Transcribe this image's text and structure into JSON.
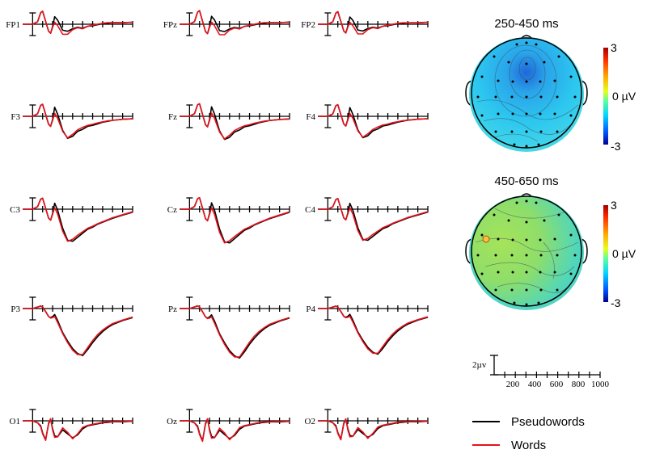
{
  "figure": {
    "electrodes": [
      [
        "FP1",
        "FPz",
        "FP2"
      ],
      [
        "F3",
        "Fz",
        "F4"
      ],
      [
        "C3",
        "Cz",
        "C4"
      ],
      [
        "P3",
        "Pz",
        "P4"
      ],
      [
        "O1",
        "Oz",
        "O2"
      ]
    ],
    "maps": [
      {
        "title": "250-450 ms",
        "cb_max": "3",
        "cb_mid": "0 µV",
        "cb_min": "-3"
      },
      {
        "title": "450-650 ms",
        "cb_max": "3",
        "cb_mid": "0 µV",
        "cb_min": "-3"
      }
    ],
    "scale": {
      "amplitude_label": "2µv",
      "ticks": [
        "200",
        "400",
        "600",
        "800",
        "1000"
      ]
    },
    "legend": [
      {
        "label": "Pseudowords",
        "color": "#000000"
      },
      {
        "label": "Words",
        "color": "#e8121b"
      }
    ]
  },
  "chart_data": {
    "type": "line",
    "x_unit": "ms",
    "xlim": [
      -100,
      1000
    ],
    "x": [
      -100,
      0,
      50,
      80,
      100,
      130,
      160,
      180,
      200,
      220,
      250,
      300,
      350,
      400,
      450,
      500,
      550,
      600,
      650,
      700,
      750,
      800,
      900,
      1000
    ],
    "series": [
      {
        "name": "Pseudowords"
      },
      {
        "name": "Words"
      }
    ],
    "waveforms": {
      "frontal_pole": {
        "Pseudowords": [
          0,
          0,
          0.5,
          2.3,
          2.6,
          0.6,
          -1.4,
          -1.8,
          -0.4,
          1.5,
          0.8,
          -1.2,
          -1.4,
          -0.9,
          -0.6,
          -0.8,
          -0.4,
          -0.3,
          -0.1,
          0.1,
          0.2,
          0.3,
          0.3,
          0.4
        ],
        "Words": [
          0,
          0,
          0.5,
          2.3,
          2.6,
          0.6,
          -1.4,
          -1.8,
          -0.6,
          0.4,
          -0.3,
          -2.0,
          -2.0,
          -1.1,
          -0.7,
          -0.9,
          -0.4,
          -0.2,
          0.0,
          0.2,
          0.3,
          0.3,
          0.3,
          0.4
        ]
      },
      "frontal": {
        "Pseudowords": [
          0,
          0,
          0.5,
          2.2,
          2.4,
          0.4,
          -1.6,
          -2.0,
          -0.6,
          1.8,
          0.4,
          -2.8,
          -4.4,
          -4.0,
          -3.0,
          -2.6,
          -2.0,
          -1.8,
          -1.5,
          -1.2,
          -1.0,
          -0.8,
          -0.6,
          -0.5
        ],
        "Words": [
          0,
          0,
          0.5,
          2.2,
          2.4,
          0.4,
          -1.6,
          -2.0,
          -0.8,
          0.6,
          -0.4,
          -3.0,
          -4.3,
          -3.6,
          -2.7,
          -2.2,
          -1.8,
          -1.6,
          -1.3,
          -1.1,
          -0.9,
          -0.8,
          -0.6,
          -0.5
        ]
      },
      "central": {
        "Pseudowords": [
          0,
          0,
          0.5,
          2.0,
          2.2,
          0.2,
          -1.8,
          -2.2,
          -0.8,
          1.2,
          -0.2,
          -3.8,
          -6.2,
          -6.4,
          -5.6,
          -4.8,
          -4.0,
          -3.6,
          -3.0,
          -2.6,
          -2.2,
          -1.8,
          -1.2,
          -0.6
        ],
        "Words": [
          0,
          0,
          0.5,
          2.0,
          2.2,
          0.2,
          -1.8,
          -2.2,
          -1.0,
          0.3,
          -1.0,
          -4.4,
          -6.4,
          -6.0,
          -5.2,
          -4.5,
          -3.8,
          -3.4,
          -2.9,
          -2.5,
          -2.1,
          -1.7,
          -1.1,
          -0.5
        ]
      },
      "parietal": {
        "Pseudowords": [
          0,
          0,
          0.3,
          0.5,
          0.3,
          -0.6,
          -1.6,
          -1.8,
          -1.6,
          -1.2,
          -2.4,
          -4.8,
          -6.5,
          -8.0,
          -9.0,
          -9.4,
          -8.2,
          -6.8,
          -5.6,
          -4.6,
          -3.8,
          -3.2,
          -2.4,
          -1.8
        ],
        "Words": [
          0,
          0,
          0.3,
          0.5,
          0.3,
          -0.6,
          -1.6,
          -1.9,
          -1.8,
          -1.6,
          -2.8,
          -5.0,
          -6.8,
          -8.3,
          -9.2,
          -9.2,
          -7.8,
          -6.4,
          -5.2,
          -4.3,
          -3.6,
          -3.0,
          -2.3,
          -1.7
        ]
      },
      "occipital": {
        "Pseudowords": [
          0,
          0,
          -0.4,
          -1.0,
          -2.4,
          -3.8,
          -0.6,
          0.3,
          -1.6,
          -3.0,
          -3.2,
          -1.8,
          -2.6,
          -3.4,
          -2.8,
          -1.6,
          -1.0,
          -0.8,
          -0.6,
          -0.4,
          -0.3,
          -0.2,
          -0.2,
          -0.1
        ],
        "Words": [
          0,
          0,
          -0.4,
          -1.2,
          -2.6,
          -3.9,
          -0.4,
          0.4,
          -1.9,
          -3.3,
          -3.2,
          -1.4,
          -2.3,
          -3.6,
          -2.6,
          -1.3,
          -0.9,
          -0.7,
          -0.5,
          -0.3,
          -0.2,
          -0.2,
          -0.1,
          -0.1
        ]
      }
    }
  }
}
